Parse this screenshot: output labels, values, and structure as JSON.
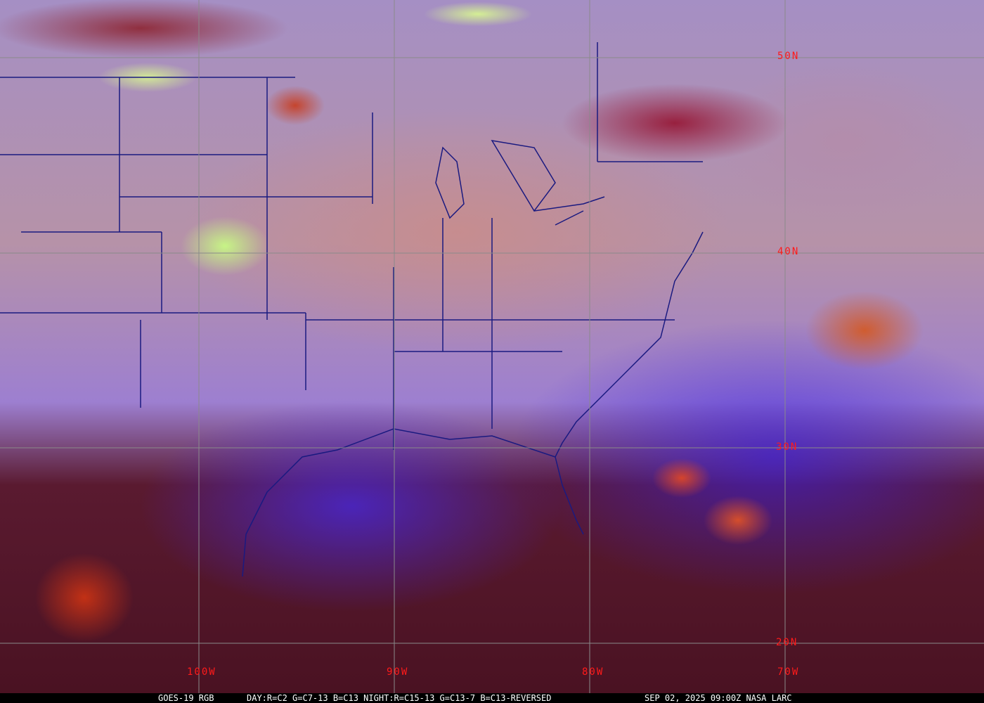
{
  "map": {
    "colors": {
      "gridline": "#8a8a8a",
      "label": "#ff1a1a",
      "boundary": "#1a1a80"
    },
    "latitude_labels": [
      "50N",
      "40N",
      "30N",
      "20N"
    ],
    "longitude_labels": [
      "100W",
      "90W",
      "80W",
      "70W"
    ]
  },
  "caption": {
    "product": "GOES-19 RGB",
    "recipe": "DAY:R=C2 G=C7-13 B=C13 NIGHT:R=C15-13 G=C13-7 B=C13-REVERSED",
    "timestamp": "SEP 02, 2025 09:00Z NASA LARC"
  }
}
